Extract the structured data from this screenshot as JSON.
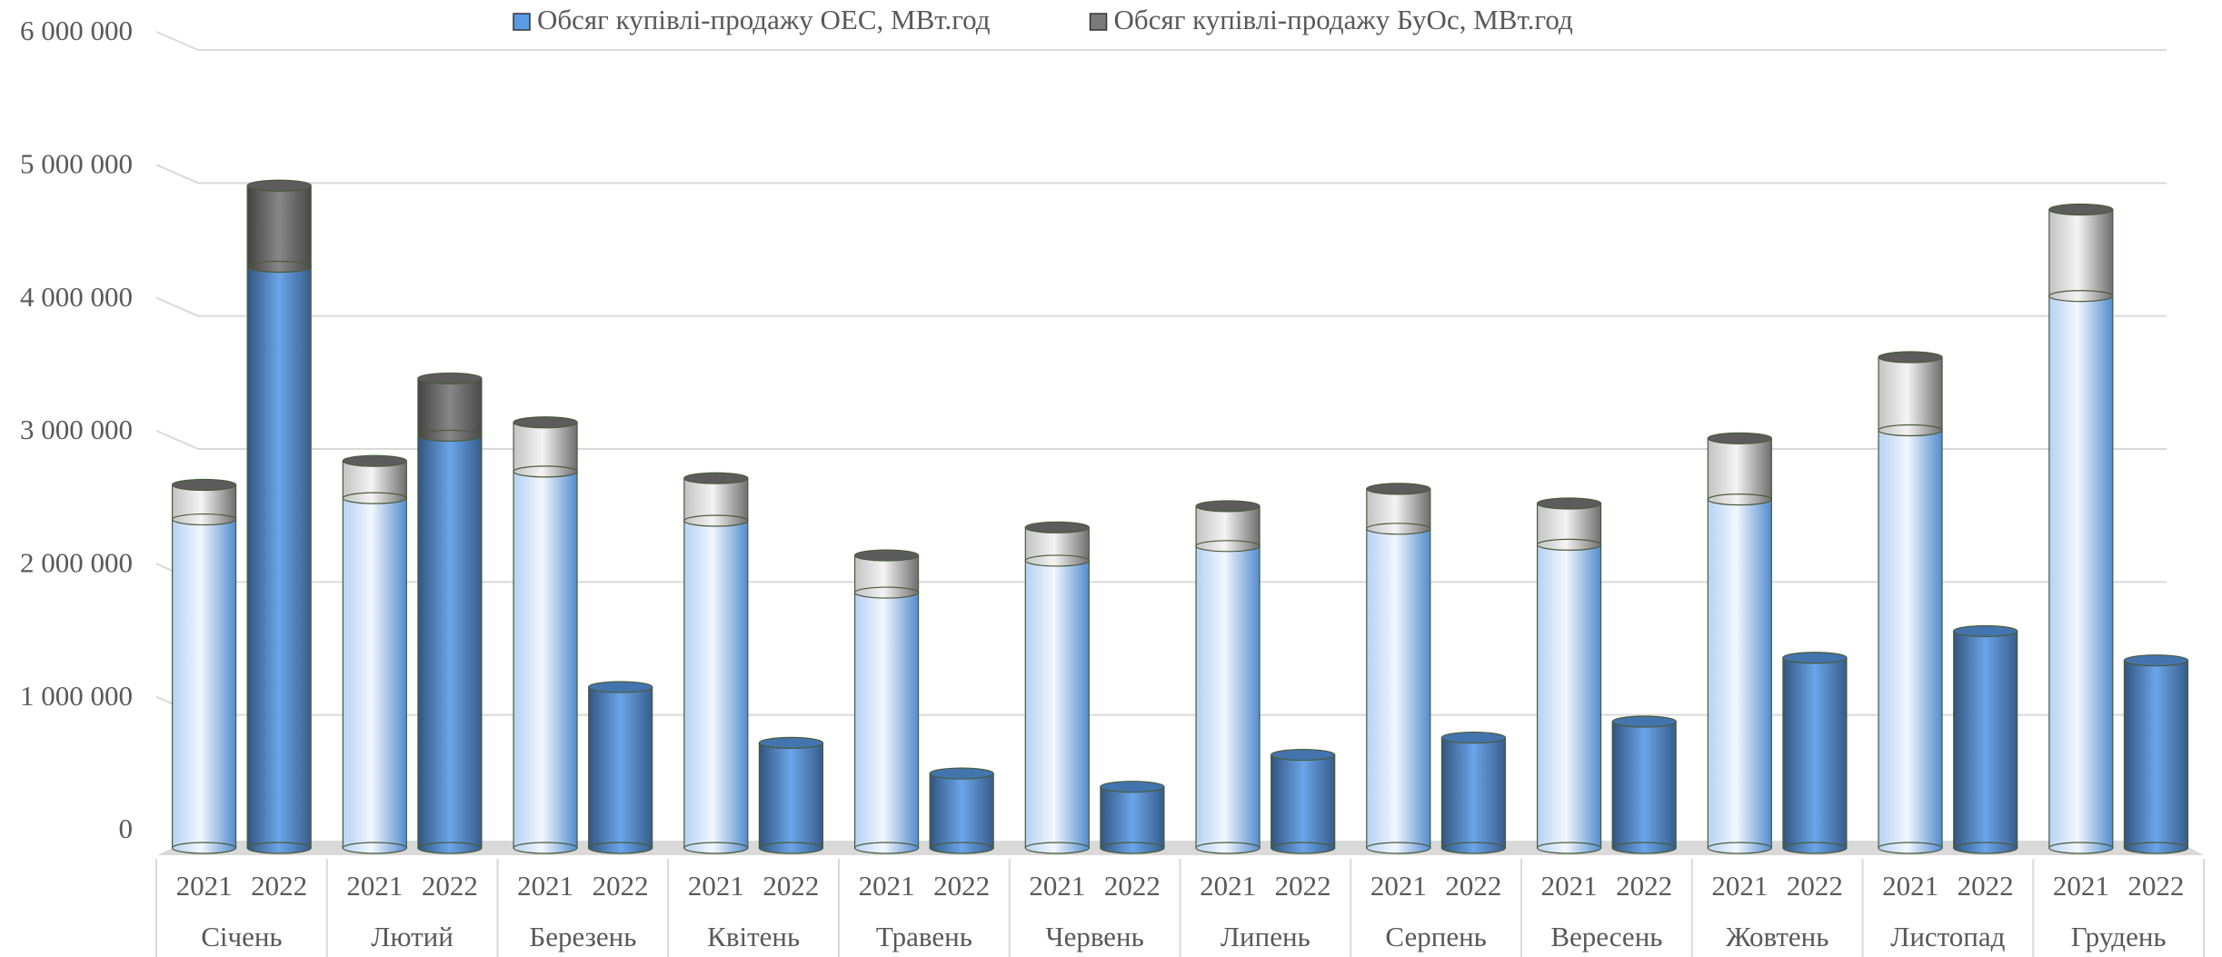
{
  "chart_data": {
    "type": "bar",
    "stacked": true,
    "groups": [
      "Січень",
      "Лютий",
      "Березень",
      "Квітень",
      "Травень",
      "Червень",
      "Липень",
      "Серпень",
      "Вересень",
      "Жовтень",
      "Листопад",
      "Грудень"
    ],
    "categories": [
      "2021",
      "2022",
      "2021",
      "2022",
      "2021",
      "2022",
      "2021",
      "2022",
      "2021",
      "2022",
      "2021",
      "2022",
      "2021",
      "2022",
      "2021",
      "2022",
      "2021",
      "2022",
      "2021",
      "2022",
      "2021",
      "2022",
      "2021",
      "2022"
    ],
    "series": [
      {
        "name": "Обсяг купівлі-продажу ОЕС, МВт.год",
        "color": "#5b9be6",
        "values": [
          2470000,
          4370000,
          2630000,
          3100000,
          2830000,
          1210000,
          2460000,
          790000,
          1920000,
          560000,
          2160000,
          460000,
          2270000,
          700000,
          2400000,
          830000,
          2280000,
          950000,
          2620000,
          1430000,
          3140000,
          1630000,
          4150000,
          1410000
        ]
      },
      {
        "name": "Обсяг купівлі-продажу БуОс, МВт.год",
        "color": "#7a7a7a",
        "values": [
          260000,
          610000,
          280000,
          430000,
          370000,
          0,
          320000,
          0,
          280000,
          0,
          250000,
          0,
          300000,
          0,
          300000,
          0,
          310000,
          0,
          460000,
          0,
          550000,
          0,
          650000,
          0
        ]
      }
    ],
    "ylim": [
      0,
      6000000
    ],
    "yticks": [
      0,
      {
        "value": 1000000,
        "label": "1 000 000"
      },
      {
        "value": 2000000,
        "label": "2 000 000"
      },
      {
        "value": 3000000,
        "label": "3 000 000"
      },
      {
        "value": 4000000,
        "label": "4 000 000"
      },
      {
        "value": 5000000,
        "label": "5 000 000"
      },
      {
        "value": 6000000,
        "label": "6 000 000"
      }
    ],
    "grid": true,
    "legend": "top"
  }
}
